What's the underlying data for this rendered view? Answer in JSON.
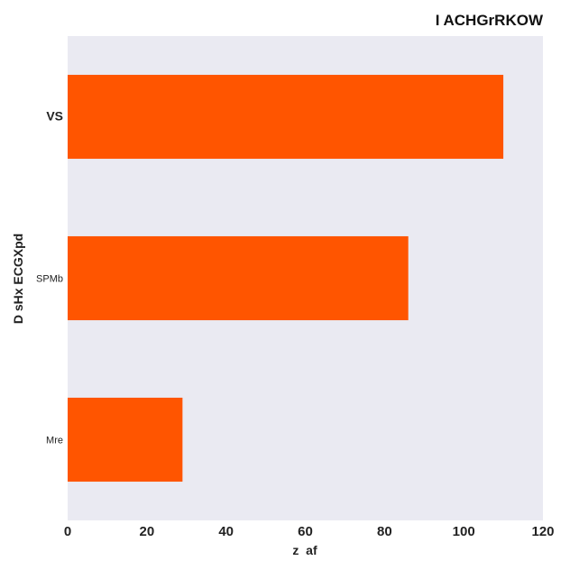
{
  "chart_data": {
    "type": "bar",
    "orientation": "horizontal",
    "title": "I ACHGrRKOW",
    "xlabel": "z  af",
    "ylabel": "D sHx ECGXpd",
    "categories": [
      "VS",
      "SPMb",
      "Mre"
    ],
    "values": [
      110,
      86,
      29
    ],
    "xlim": [
      0,
      120
    ],
    "xticks": [
      "0",
      "20",
      "40",
      "60",
      "80",
      "100",
      "120"
    ],
    "grid": false,
    "bar_color": "#ff5500",
    "plot_background": "#eaeaf2"
  }
}
